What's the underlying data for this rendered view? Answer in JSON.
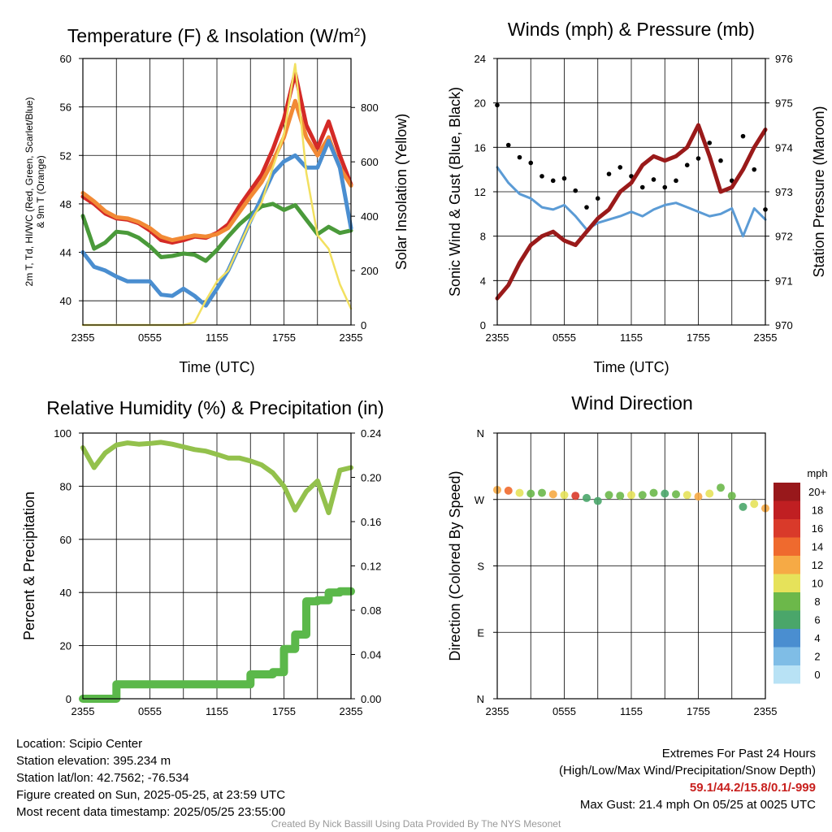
{
  "footer": {
    "location": "Location: Scipio Center",
    "elevation": "Station elevation: 395.234 m",
    "latlon": "Station lat/lon: 42.7562; -76.534",
    "created": "Figure created on Sun, 2025-05-25, at 23:59 UTC",
    "recent": "Most recent data timestamp: 2025/05/25 23:55:00",
    "extremes_title": "Extremes For Past 24 Hours",
    "extremes_sub": "(High/Low/Max Wind/Precipitation/Snow Depth)",
    "extremes_values": "59.1/44.2/15.8/0.1/-999",
    "max_gust": "Max Gust: 21.4 mph On 05/25 at 0025 UTC",
    "credit": "Created By Nick Bassill Using Data Provided By The NYS Mesonet"
  },
  "chart_data": [
    {
      "type": "line",
      "title": "Temperature (F) & Insolation (W/m²)",
      "title_main": "Temperature (F) & Insolation (W/m",
      "title_sup": "2",
      "title_end": ")",
      "xlabel": "Time (UTC)",
      "ylabel_left_1": "2m T, Td, HI/WC (Red, Green, Scarlet/Blue)",
      "ylabel_left_2": "& 9m T (Orange)",
      "ylabel_right": "Solar Insolation (Yellow)",
      "x_ticks": [
        "2355",
        "0555",
        "1155",
        "1755",
        "2355"
      ],
      "ylim_left": [
        38,
        60
      ],
      "yticks_left": [
        "40",
        "44",
        "48",
        "52",
        "56",
        "60"
      ],
      "ylim_right": [
        0,
        980
      ],
      "yticks_right": [
        "0",
        "200",
        "400",
        "600",
        "800"
      ],
      "x_hours": [
        0,
        1,
        2,
        3,
        4,
        5,
        6,
        7,
        8,
        9,
        10,
        11,
        12,
        13,
        14,
        15,
        16,
        17,
        18,
        19,
        20,
        21,
        22,
        23,
        24
      ],
      "series": [
        {
          "color": "#d42a26",
          "values": [
            48.6,
            48.0,
            47.2,
            46.8,
            46.7,
            46.4,
            45.8,
            45.0,
            44.8,
            45.0,
            45.3,
            45.2,
            45.6,
            46.3,
            47.8,
            49.1,
            50.4,
            52.5,
            55.0,
            58.8,
            54.5,
            52.6,
            54.8,
            52.0,
            49.6
          ]
        },
        {
          "color": "#f28a35",
          "values": [
            48.9,
            48.2,
            47.4,
            46.9,
            46.8,
            46.5,
            46.0,
            45.3,
            45.0,
            45.2,
            45.4,
            45.3,
            45.5,
            46.0,
            47.3,
            48.6,
            49.8,
            51.5,
            53.5,
            56.5,
            53.5,
            52.0,
            53.5,
            51.0,
            49.5
          ]
        },
        {
          "color": "#4a9a3a",
          "values": [
            47.0,
            44.3,
            44.8,
            45.7,
            45.6,
            45.2,
            44.5,
            43.6,
            43.7,
            43.9,
            43.8,
            43.3,
            44.2,
            45.3,
            46.3,
            47.1,
            47.8,
            48.0,
            47.5,
            47.9,
            46.7,
            45.5,
            46.1,
            45.6,
            45.8
          ]
        },
        {
          "color": "#4a8ed0",
          "values": [
            44.0,
            42.8,
            42.5,
            42.0,
            41.6,
            41.6,
            41.6,
            40.5,
            40.4,
            41.0,
            40.4,
            39.6,
            41.0,
            42.5,
            44.5,
            46.6,
            48.5,
            50.5,
            51.5,
            52.0,
            51.0,
            51.0,
            53.2,
            51.0,
            46.0
          ]
        },
        {
          "color": "#f2e060",
          "axis": "right",
          "values": [
            0,
            0,
            0,
            0,
            0,
            0,
            0,
            0,
            0,
            0,
            10,
            90,
            160,
            200,
            290,
            380,
            450,
            580,
            700,
            960,
            560,
            330,
            280,
            150,
            60
          ]
        }
      ]
    },
    {
      "type": "line",
      "title": "Winds (mph) & Pressure (mb)",
      "xlabel": "Time (UTC)",
      "ylabel_left": "Sonic Wind & Gust (Blue, Black)",
      "ylabel_right": "Station Pressure (Maroon)",
      "x_ticks": [
        "2355",
        "0555",
        "1155",
        "1755",
        "2355"
      ],
      "ylim_left": [
        0,
        24
      ],
      "yticks_left": [
        "0",
        "4",
        "8",
        "12",
        "16",
        "20",
        "24"
      ],
      "ylim_right": [
        970,
        976
      ],
      "yticks_right": [
        "970",
        "971",
        "972",
        "973",
        "974",
        "975",
        "976"
      ],
      "x_hours": [
        0,
        1,
        2,
        3,
        4,
        5,
        6,
        7,
        8,
        9,
        10,
        11,
        12,
        13,
        14,
        15,
        16,
        17,
        18,
        19,
        20,
        21,
        22,
        23,
        24
      ],
      "series": [
        {
          "color": "#5b9bd5",
          "values": [
            14.2,
            12.8,
            11.8,
            11.4,
            10.6,
            10.4,
            10.8,
            9.8,
            8.6,
            9.2,
            9.5,
            9.8,
            10.2,
            9.8,
            10.4,
            10.8,
            11.0,
            10.6,
            10.2,
            9.8,
            10.0,
            10.5,
            8.0,
            10.5,
            9.5
          ]
        },
        {
          "color": "#000000",
          "marker": "dot",
          "values": [
            19.8,
            16.2,
            15.1,
            14.6,
            13.4,
            13.0,
            13.2,
            12.1,
            10.6,
            11.4,
            13.6,
            14.2,
            13.4,
            12.4,
            13.1,
            12.4,
            13.0,
            14.4,
            15.0,
            16.4,
            14.8,
            13.0,
            17.0,
            14.0,
            10.4
          ]
        },
        {
          "color": "#9a1a1a",
          "axis": "right",
          "values": [
            970.6,
            970.9,
            971.4,
            971.8,
            972.0,
            972.1,
            971.9,
            971.8,
            972.1,
            972.4,
            972.6,
            973.0,
            973.2,
            973.6,
            973.8,
            973.7,
            973.8,
            974.0,
            974.5,
            973.8,
            973.0,
            973.1,
            973.5,
            974.0,
            974.4
          ]
        }
      ]
    },
    {
      "type": "line",
      "title": "Relative Humidity (%) & Precipitation (in)",
      "ylabel_left": "Percent & Precipitation",
      "x_ticks": [
        "2355",
        "0555",
        "1155",
        "1755",
        "2355"
      ],
      "ylim_left": [
        0,
        100
      ],
      "yticks_left": [
        "0",
        "20",
        "40",
        "60",
        "80",
        "100"
      ],
      "ylim_right": [
        0,
        0.24
      ],
      "yticks_right": [
        "0.00",
        "0.04",
        "0.08",
        "0.12",
        "0.16",
        "0.20",
        "0.24"
      ],
      "x_hours": [
        0,
        1,
        2,
        3,
        4,
        5,
        6,
        7,
        8,
        9,
        10,
        11,
        12,
        13,
        14,
        15,
        16,
        17,
        18,
        19,
        20,
        21,
        22,
        23,
        24
      ],
      "series": [
        {
          "color": "#93c14c",
          "values": [
            94.5,
            87.0,
            92.5,
            95.5,
            96.3,
            95.8,
            96.1,
            96.5,
            95.8,
            94.8,
            93.8,
            93.2,
            92.0,
            90.6,
            90.6,
            89.5,
            88.0,
            85.0,
            80.0,
            71.0,
            78.0,
            82.0,
            70.0,
            86.0,
            87.0
          ]
        },
        {
          "color": "#5bb84a",
          "axis": "right",
          "values": [
            0.0,
            0.0,
            0.0,
            0.013,
            0.013,
            0.013,
            0.013,
            0.013,
            0.013,
            0.013,
            0.013,
            0.013,
            0.013,
            0.013,
            0.013,
            0.022,
            0.022,
            0.024,
            0.045,
            0.058,
            0.088,
            0.089,
            0.096,
            0.097,
            0.097
          ]
        }
      ]
    },
    {
      "type": "scatter",
      "title": "Wind Direction",
      "ylabel_left": "Direction (Colored By Speed)",
      "x_ticks": [
        "2355",
        "0555",
        "1155",
        "1755",
        "2355"
      ],
      "y_categories": [
        "N",
        "E",
        "S",
        "W",
        "N"
      ],
      "ylim": [
        0,
        360
      ],
      "legend_title": "mph",
      "legend_labels": [
        "0",
        "2",
        "4",
        "6",
        "8",
        "10",
        "12",
        "14",
        "16",
        "18",
        "20+"
      ],
      "legend_colors": [
        "#b8e2f5",
        "#7fbde6",
        "#4a8ed0",
        "#4aa66a",
        "#6cb84a",
        "#e6e25a",
        "#f6aa45",
        "#ef6a2e",
        "#d93a2a",
        "#c01f22",
        "#98181b"
      ],
      "x_hours": [
        0,
        1,
        2,
        3,
        4,
        5,
        6,
        7,
        8,
        9,
        10,
        11,
        12,
        13,
        14,
        15,
        16,
        17,
        18,
        19,
        20,
        21,
        22,
        23,
        24
      ],
      "values": [
        283,
        282,
        279,
        278,
        279,
        277,
        276,
        275,
        272,
        268,
        276,
        275,
        276,
        276,
        279,
        278,
        277,
        276,
        274,
        278,
        286,
        275,
        260,
        264,
        258
      ],
      "speeds": [
        12,
        14,
        10,
        9,
        8,
        12,
        10,
        16,
        7,
        6,
        9,
        8,
        10,
        9,
        8,
        7,
        9,
        11,
        13,
        10,
        9,
        8,
        6,
        11,
        12
      ]
    }
  ]
}
